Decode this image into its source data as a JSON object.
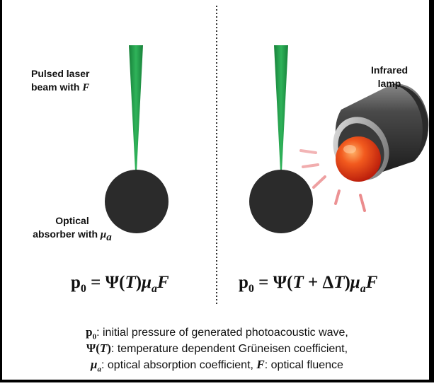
{
  "left_panel": {
    "laser_label_line1": "Pulsed laser",
    "laser_label_line2": "beam with ",
    "laser_label_symbol": "F",
    "absorber_label_line1": "Optical",
    "absorber_label_line2": "absorber with ",
    "absorber_label_symbol": "μ",
    "absorber_label_symbol_sub": "a",
    "equation": {
      "lhs": "p",
      "lhs_sub": "0",
      "eq": " = Ψ(",
      "t": "T",
      "close": ")",
      "mu": "μ",
      "mu_sub": "a",
      "f": "F"
    }
  },
  "right_panel": {
    "lamp_label_line1": "Infrared",
    "lamp_label_line2": "lamp",
    "equation": {
      "lhs": "p",
      "lhs_sub": "0",
      "eq": " = Ψ(",
      "t": "T",
      "plus": " + Δ",
      "t2": "T",
      "close": ")",
      "mu": "μ",
      "mu_sub": "a",
      "f": "F"
    }
  },
  "caption": {
    "line1_sym": "p",
    "line1_sym_sub": "0",
    "line1_text": ": initial pressure of generated photoacoustic wave,",
    "line2_sym_a": "Ψ(",
    "line2_sym_t": "T",
    "line2_sym_b": ")",
    "line2_text": ": temperature dependent Grüneisen coefficient,",
    "line3_sym": "μ",
    "line3_sym_sub": "a",
    "line3_text_a": ": optical absorption coefficient, ",
    "line3_sym_f": "F",
    "line3_text_b": ": optical fluence"
  },
  "colors": {
    "laser_green": "#1f9a4a",
    "absorber": "#2b2b2b",
    "bulb": "#e2361a",
    "heat_rays": "#e8787a",
    "border": "#000000"
  }
}
